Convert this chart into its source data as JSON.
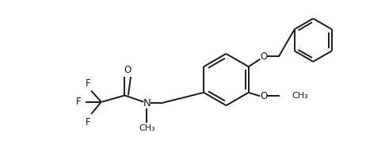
{
  "background_color": "#ffffff",
  "line_color": "#1a1a1a",
  "line_width": 1.4,
  "font_size": 8.5,
  "fig_width": 4.62,
  "fig_height": 1.92,
  "dpi": 100,
  "xlim": [
    0,
    10
  ],
  "ylim": [
    0,
    4.2
  ]
}
